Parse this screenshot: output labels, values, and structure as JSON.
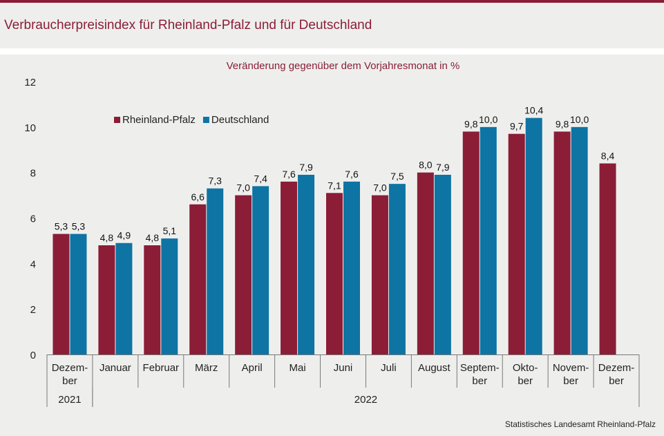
{
  "header": {
    "title": "Verbraucherpreisindex für Rheinland-Pfalz und für Deutschland"
  },
  "footer": {
    "source": "Statistisches Landesamt Rheinland-Pfalz"
  },
  "colors": {
    "accent": "#8b1d37",
    "series_rlp": "#8b1d37",
    "series_de": "#0e74a3",
    "background": "#eeefed"
  },
  "chart_data": {
    "type": "bar",
    "subtitle": "Veränderung gegenüber dem Vorjahresmonat in %",
    "categories": [
      [
        "Dezem-",
        "ber"
      ],
      [
        "Januar"
      ],
      [
        "Februar"
      ],
      [
        "März"
      ],
      [
        "April"
      ],
      [
        "Mai"
      ],
      [
        "Juni"
      ],
      [
        "Juli"
      ],
      [
        "August"
      ],
      [
        "Septem-",
        "ber"
      ],
      [
        "Okto-",
        "ber"
      ],
      [
        "Novem-",
        "ber"
      ],
      [
        "Dezem-",
        "ber"
      ]
    ],
    "year_groups": [
      {
        "label": "2021",
        "start": 0,
        "end": 0
      },
      {
        "label": "2022",
        "start": 1,
        "end": 12
      }
    ],
    "series": [
      {
        "name": "Rheinland-Pfalz",
        "values": [
          5.3,
          4.8,
          4.8,
          6.6,
          7.0,
          7.6,
          7.1,
          7.0,
          8.0,
          9.8,
          9.7,
          9.8,
          8.4
        ],
        "labels": [
          "5,3",
          "4,8",
          "4,8",
          "6,6",
          "7,0",
          "7,6",
          "7,1",
          "7,0",
          "8,0",
          "9,8",
          "9,7",
          "9,8",
          "8,4"
        ]
      },
      {
        "name": "Deutschland",
        "values": [
          5.3,
          4.9,
          5.1,
          7.3,
          7.4,
          7.9,
          7.6,
          7.5,
          7.9,
          10.0,
          10.4,
          10.0,
          null
        ],
        "labels": [
          "5,3",
          "4,9",
          "5,1",
          "7,3",
          "7,4",
          "7,9",
          "7,6",
          "7,5",
          "7,9",
          "10,0",
          "10,4",
          "10,0",
          ""
        ]
      }
    ],
    "ylim": [
      0,
      12
    ],
    "yticks": [
      0,
      2,
      4,
      6,
      8,
      10,
      12
    ],
    "grid": false,
    "legend": "top-left"
  }
}
